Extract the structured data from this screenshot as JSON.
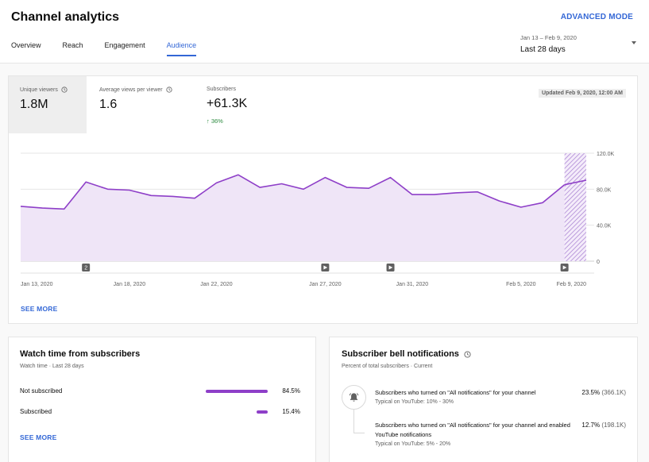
{
  "header": {
    "title": "Channel analytics",
    "advanced_mode": "ADVANCED MODE",
    "tabs": [
      {
        "label": "Overview",
        "active": false
      },
      {
        "label": "Reach",
        "active": false
      },
      {
        "label": "Engagement",
        "active": false
      },
      {
        "label": "Audience",
        "active": true
      }
    ],
    "date_range": {
      "sub": "Jan 13 – Feb 9, 2020",
      "main": "Last 28 days"
    }
  },
  "metrics": [
    {
      "label": "Unique viewers",
      "value": "1.8M",
      "delta": "",
      "selected": true
    },
    {
      "label": "Average views per viewer",
      "value": "1.6",
      "delta": "",
      "selected": false
    },
    {
      "label": "Subscribers",
      "value": "+61.3K",
      "delta": "36%",
      "selected": false
    }
  ],
  "updated": "Updated Feb 9, 2020, 12:00 AM",
  "chart_data": {
    "type": "area",
    "x_tick_labels": [
      "Jan 13, 2020",
      "Jan 18, 2020",
      "Jan 22, 2020",
      "Jan 27, 2020",
      "Jan 31, 2020",
      "Feb 5, 2020",
      "Feb 9, 2020"
    ],
    "y_tick_labels": [
      "0",
      "40.0K",
      "80.0K",
      "120.0K"
    ],
    "ylim": [
      0,
      120000
    ],
    "values": [
      61000,
      59000,
      58000,
      88000,
      80000,
      79000,
      73000,
      72000,
      70000,
      87000,
      96000,
      82000,
      86000,
      80000,
      93000,
      82000,
      81000,
      93000,
      74000,
      74000,
      76000,
      77000,
      67000,
      60000,
      65000,
      85000,
      90000
    ],
    "markers": [
      {
        "index": 3,
        "label": "2"
      },
      {
        "index": 14,
        "label": "play"
      },
      {
        "index": 17,
        "label": "play"
      },
      {
        "index": 25,
        "label": "play"
      }
    ],
    "partial_last_segment": true,
    "color": "#8e3fc8",
    "fill": "#efe5f7",
    "grid": true
  },
  "see_more": "SEE MORE",
  "watch_time": {
    "title": "Watch time from subscribers",
    "subtitle": "Watch time · Last 28 days",
    "rows": [
      {
        "label": "Not subscribed",
        "percent": 84.5,
        "display": "84.5%"
      },
      {
        "label": "Subscribed",
        "percent": 15.4,
        "display": "15.4%"
      }
    ],
    "see_more": "SEE MORE"
  },
  "bell": {
    "title": "Subscriber bell notifications",
    "subtitle": "Percent of total subscribers · Current",
    "items": [
      {
        "text": "Subscribers who turned on \"All notifications\" for your channel",
        "typical": "Typical on YouTube: 10% - 30%",
        "value": "23.5%",
        "count": "(366.1K)"
      },
      {
        "text": "Subscribers who turned on \"All notifications\" for your channel and enabled YouTube notifications",
        "typical": "Typical on YouTube: 5% - 20%",
        "value": "12.7%",
        "count": "(198.1K)"
      }
    ]
  }
}
